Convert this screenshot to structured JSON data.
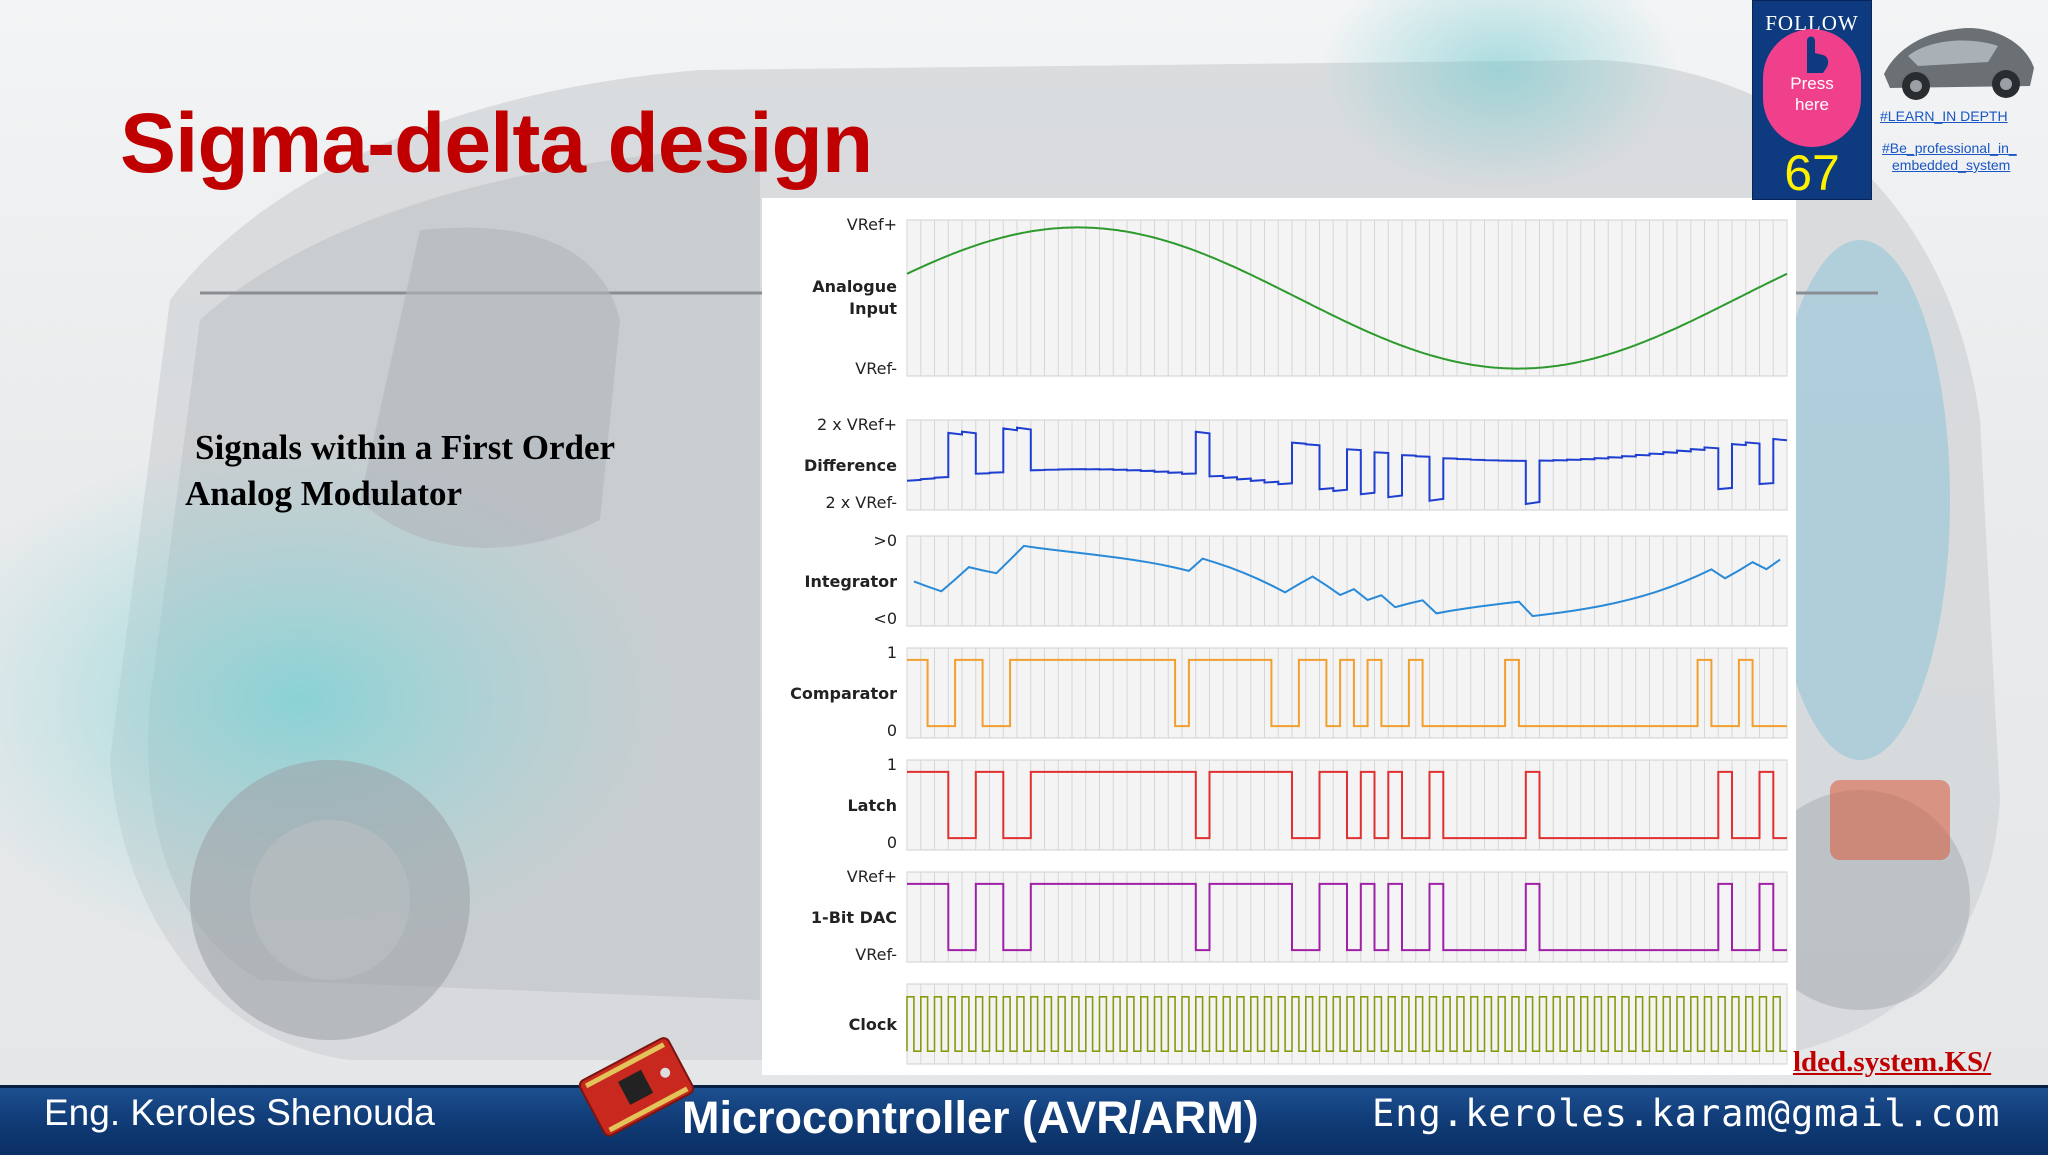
{
  "slide": {
    "title": "Sigma-delta design",
    "subtitle_line1": "Signals within a First Order",
    "subtitle_line2": "Analog Modulator"
  },
  "badge": {
    "follow_label": "FOLLOW US",
    "press_line1": "Press",
    "press_line2": "here",
    "slide_number": "67",
    "tag1": "#LEARN_IN DEPTH",
    "tag2_line1": "#Be_professional_in_",
    "tag2_line2": "embedded_system"
  },
  "footer": {
    "author": "Eng. Keroles Shenouda",
    "course": "Microcontroller (AVR/ARM)",
    "email": "Eng.keroles.karam@gmail.com",
    "link_fragment": "lded.system.KS/"
  },
  "colors": {
    "title_red": "#c00000",
    "footer_blue": "#123f7c",
    "analogue": "#2e9a2e",
    "difference": "#1f3fd0",
    "integrator": "#2a8ad8",
    "comparator": "#f0a030",
    "latch": "#e03030",
    "dac": "#a020a8",
    "clock": "#8a9a10"
  },
  "chart_data": {
    "type": "line",
    "clock_cycles": 64,
    "panels": [
      {
        "key": "analogue",
        "label": [
          "Analogue",
          "Input"
        ],
        "top_tick": "VRef+",
        "bottom_tick": "VRef-",
        "waveform": "sine",
        "cycles": 1,
        "phase_start": 0.35
      },
      {
        "key": "difference",
        "label": [
          "Difference"
        ],
        "top_tick": "2 x VRef+",
        "bottom_tick": "2 x VRef-"
      },
      {
        "key": "integrator",
        "label": [
          "Integrator"
        ],
        "top_tick": ">0",
        "bottom_tick": "<0"
      },
      {
        "key": "comparator",
        "label": [
          "Comparator"
        ],
        "top_tick": "1",
        "bottom_tick": "0"
      },
      {
        "key": "latch",
        "label": [
          "Latch"
        ],
        "top_tick": "1",
        "bottom_tick": "0"
      },
      {
        "key": "dac",
        "label": [
          "1-Bit DAC"
        ],
        "top_tick": "VRef+",
        "bottom_tick": "VRef-"
      },
      {
        "key": "clock",
        "label": [
          "Clock"
        ],
        "top_tick": "",
        "bottom_tick": ""
      }
    ],
    "latch_bits": [
      1,
      1,
      1,
      0,
      0,
      1,
      1,
      0,
      0,
      1,
      1,
      1,
      1,
      1,
      1,
      1,
      1,
      1,
      1,
      1,
      1,
      0,
      1,
      1,
      1,
      1,
      1,
      1,
      0,
      0,
      1,
      1,
      0,
      1,
      0,
      1,
      0,
      0,
      1,
      0,
      0,
      0,
      0,
      0,
      0,
      1,
      0,
      0,
      0,
      0,
      0,
      0,
      0,
      0,
      0,
      0,
      0,
      0,
      0,
      1,
      0,
      0,
      1,
      0
    ]
  }
}
